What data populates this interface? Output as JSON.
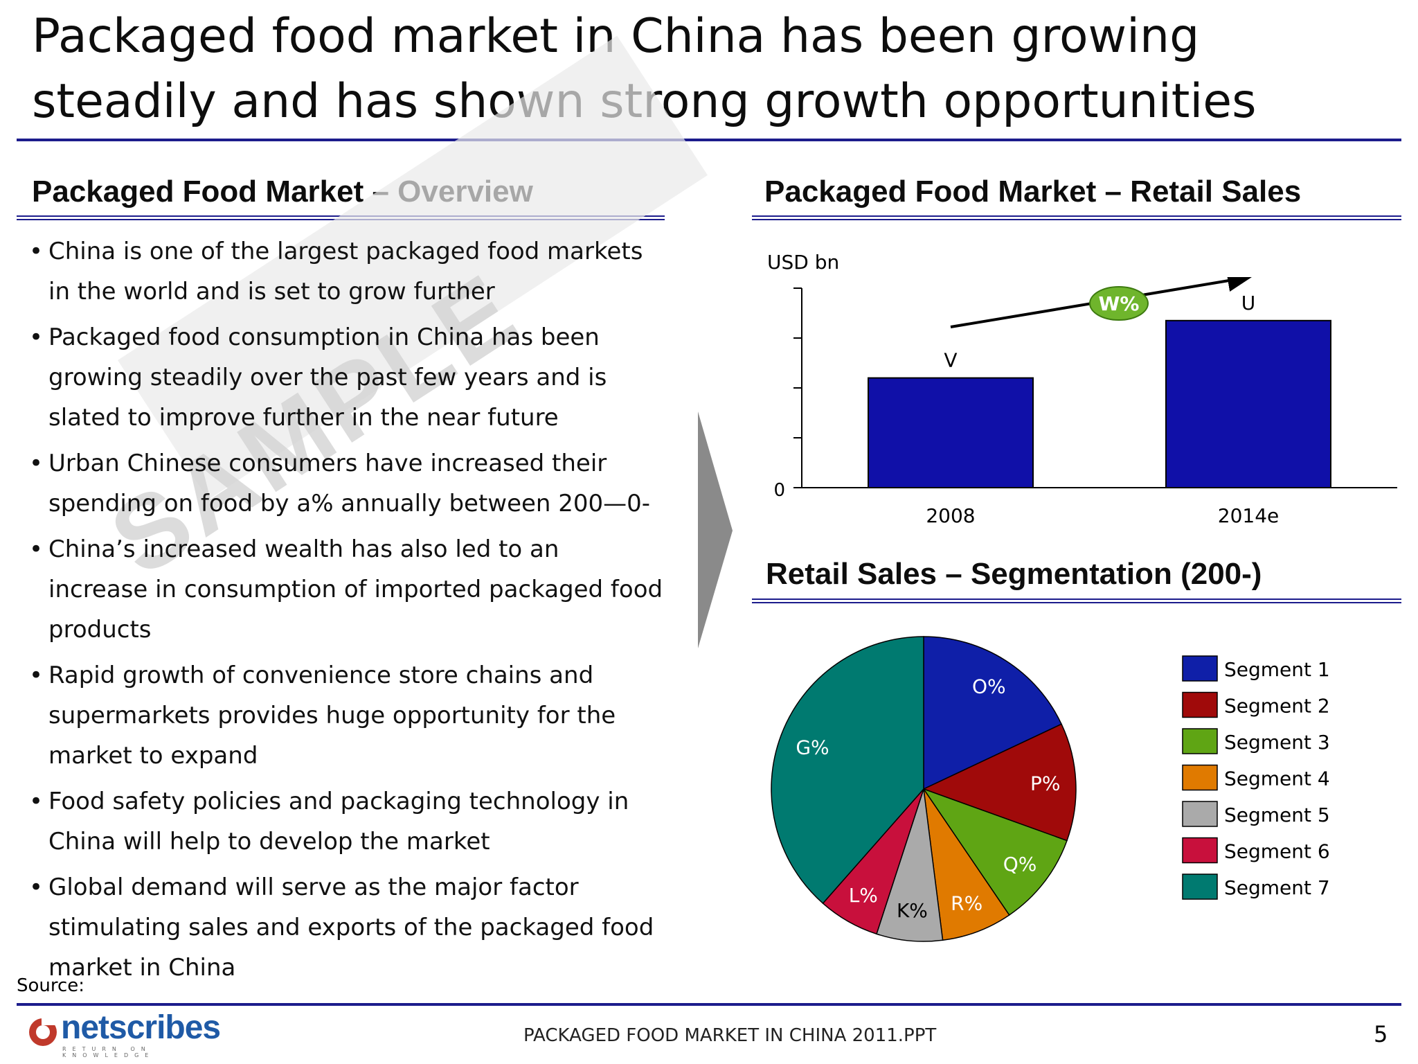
{
  "title": "Packaged food market in China has been growing steadily and has shown strong growth opportunities",
  "overview": {
    "heading": "Packaged Food Market – Overview",
    "bullets": [
      "China is one of the largest packaged food markets in the world and is set to grow further",
      "Packaged food consumption in China has been growing steadily over the past few years and is slated to improve further in the near future",
      "Urban Chinese consumers have increased their spending on food by a% annually between 200—0-",
      "China’s increased wealth has also led to an increase in consumption of imported packaged food products",
      "Rapid growth of convenience store chains and supermarkets provides huge opportunity for the market to expand",
      "Food safety policies and packaging technology in China will help to develop the market",
      "Global demand will serve as the major factor stimulating sales and exports of the packaged food market in China"
    ],
    "watermark": "SAMPLE"
  },
  "retail_sales": {
    "heading": "Packaged Food Market – Retail Sales",
    "unit_label": "USD bn",
    "zero_label": "0",
    "growth_label": "W%"
  },
  "segmentation": {
    "heading": "Retail Sales – Segmentation (200-)"
  },
  "chart_data": [
    {
      "type": "bar",
      "categories": [
        "2008",
        "2014e"
      ],
      "values": [
        2.2,
        3.35
      ],
      "data_labels": [
        "V",
        "U"
      ],
      "ylabel": "USD bn",
      "ylim": [
        0,
        4
      ],
      "colors": [
        "#1010a8",
        "#1010a8"
      ],
      "annotation": "W%"
    },
    {
      "type": "pie",
      "labels": [
        "Segment 1",
        "Segment 2",
        "Segment 3",
        "Segment 4",
        "Segment 5",
        "Segment 6",
        "Segment 7"
      ],
      "data_labels": [
        "O%",
        "P%",
        "Q%",
        "R%",
        "K%",
        "L%",
        "G%"
      ],
      "values": [
        18,
        12.5,
        10,
        7.5,
        7,
        6.5,
        38.5
      ],
      "colors": [
        "#0f1fa8",
        "#a00a0a",
        "#5fa514",
        "#e07a00",
        "#aaaaaa",
        "#c8103c",
        "#007a70"
      ],
      "legend": "right"
    }
  ],
  "footer": {
    "source": "Source:",
    "doc_name": "PACKAGED FOOD MARKET IN CHINA 2011.PPT",
    "page_number": "5",
    "logo_text": "netscribes",
    "logo_tagline": "RETURN ON KNOWLEDGE"
  }
}
